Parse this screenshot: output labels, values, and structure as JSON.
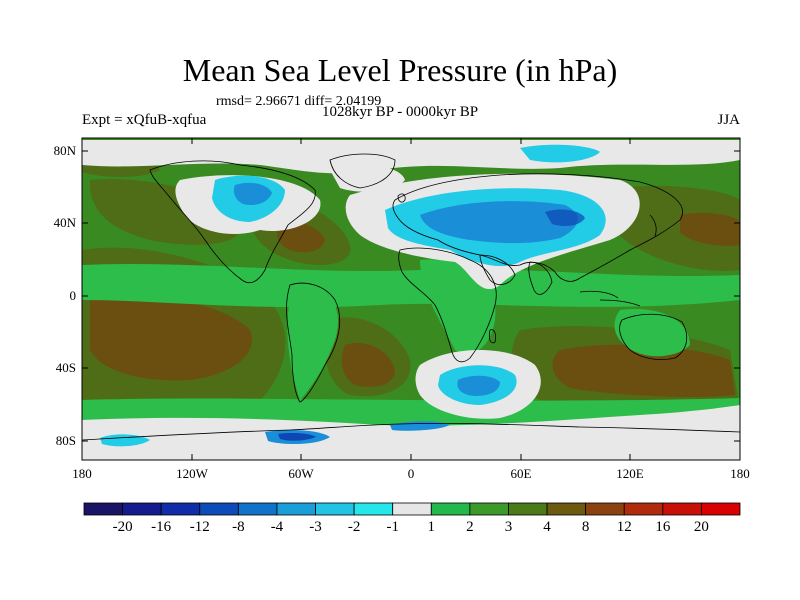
{
  "title": "Mean Sea Level Pressure (in hPa)",
  "stats": "rmsd= 2.96671 diff= 2.04199",
  "left_string": "Expt = xQfuB-xqfua",
  "center_string": "1028kyr BP - 0000kyr BP",
  "right_string": "JJA",
  "lat_labels": [
    "80N",
    "40N",
    "0",
    "40S",
    "80S"
  ],
  "lon_labels": [
    "180",
    "120W",
    "60W",
    "0",
    "60E",
    "120E",
    "180"
  ],
  "colorbar": {
    "labels": [
      "-20",
      "-16",
      "-12",
      "-8",
      "-4",
      "-3",
      "-2",
      "-1",
      "1",
      "2",
      "3",
      "4",
      "8",
      "12",
      "16",
      "20"
    ],
    "colors": [
      "#1a1466",
      "#151a8c",
      "#102ca8",
      "#0d4cb8",
      "#1072c8",
      "#1a9ed8",
      "#22c4e6",
      "#26e6ea",
      "#e6e6e6",
      "#22b84a",
      "#3c9a2a",
      "#4d7a18",
      "#6b5a10",
      "#8c4210",
      "#b02a0e",
      "#c81008",
      "#d80000"
    ]
  },
  "map": {
    "background": "#3da935",
    "colors": {
      "light_green": "#2dbd4a",
      "dark_green": "#3a8a22",
      "olive": "#4e6d16",
      "brown": "#6a4f10",
      "grey": "#e8e8e8",
      "cyan": "#22cbe6",
      "blue": "#1a8ed6",
      "dark_blue": "#0e46b4"
    }
  }
}
